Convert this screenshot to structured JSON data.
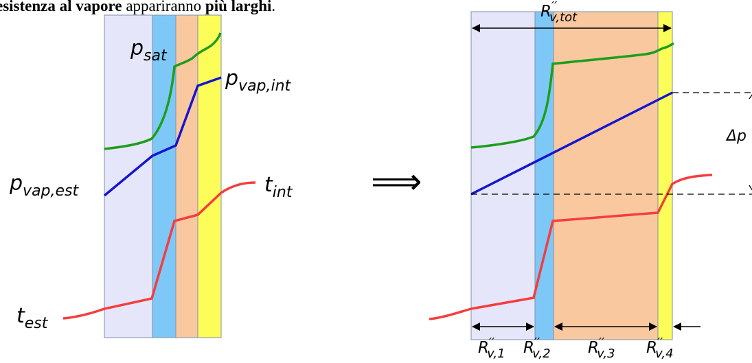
{
  "header": {
    "bold_1": "esistenza al vapore",
    "normal": " appariranno ",
    "bold_2": "più larghi",
    "end": "."
  },
  "layer_colors": [
    "#E6E6FA",
    "#7EC8F8",
    "#F9C89F",
    "#FDFD5A"
  ],
  "curve_colors": {
    "p_sat": "#1C9E1C",
    "p_vap": "#1515D0",
    "t": "#F53D3D"
  },
  "left_diagram": {
    "label_p_sat": {
      "base": "p",
      "sub": "sat"
    },
    "label_p_vap_int": {
      "base": "p",
      "sub": "vap,int"
    },
    "label_p_vap_est": {
      "base": "p",
      "sub": "vap,est"
    },
    "label_t_int": {
      "base": "t",
      "sub": "int"
    },
    "label_t_est": {
      "base": "t",
      "sub": "est"
    }
  },
  "implies_symbol": "⟹",
  "right_diagram": {
    "label_total": {
      "base": "R",
      "prime": "′′",
      "sub": "v,tot"
    },
    "label_delta_p": "Δp",
    "layer_labels": [
      {
        "base": "R",
        "prime": "′′",
        "sub": "v,1"
      },
      {
        "base": "R",
        "prime": "′′",
        "sub": "v,2"
      },
      {
        "base": "R",
        "prime": "′′",
        "sub": "v,3"
      },
      {
        "base": "R",
        "prime": "′′",
        "sub": "v,4"
      }
    ]
  }
}
